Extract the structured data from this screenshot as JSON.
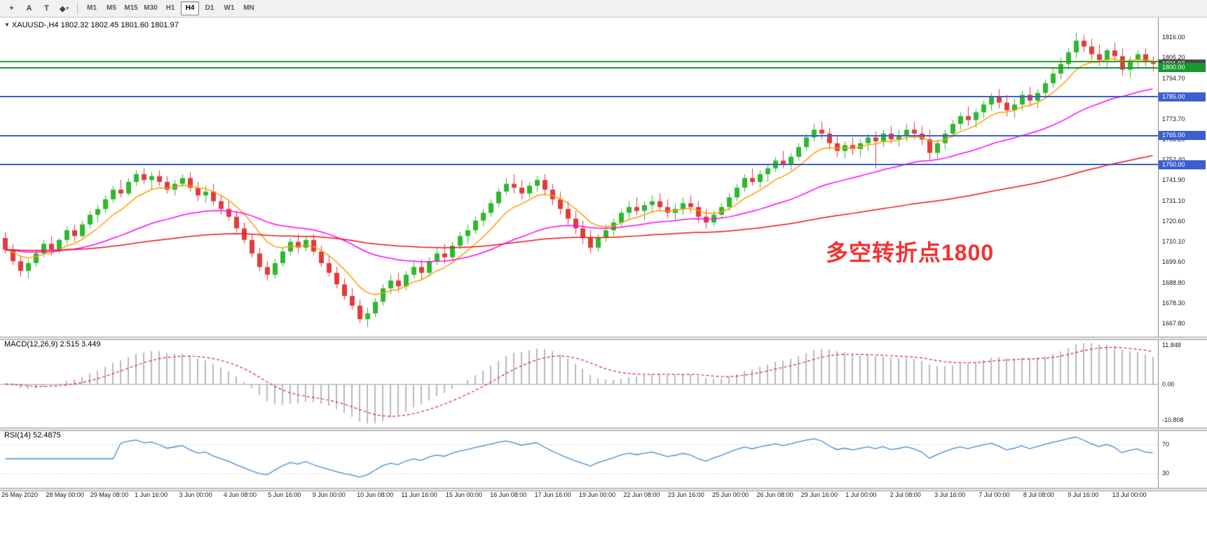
{
  "toolbar": {
    "tools": [
      {
        "name": "crosshair-tool",
        "glyph": "+"
      },
      {
        "name": "label-a-tool",
        "glyph": "A"
      },
      {
        "name": "text-t-tool",
        "glyph": "T"
      },
      {
        "name": "shapes-dropdown-tool",
        "glyph": "◆",
        "caret": "▾"
      }
    ],
    "timeframes": [
      "M1",
      "M5",
      "M15",
      "M30",
      "H1",
      "H4",
      "D1",
      "W1",
      "MN"
    ],
    "active_timeframe": "H4"
  },
  "chart": {
    "expander_icon": "▼",
    "title": "XAUUSD-,H4  1802.32 1802.45 1801.60 1801.97",
    "annotation": "多空转折点1800",
    "price_axis_labels": [
      "1816.00",
      "1805.20",
      "1794.70",
      "1784.20",
      "1773.70",
      "1763.20",
      "1752.40",
      "1741.90",
      "1731.10",
      "1720.60",
      "1710.10",
      "1699.60",
      "1688.80",
      "1678.30",
      "1667.80"
    ],
    "price_boxes": [
      {
        "text": "1801.97",
        "value": 1801.97,
        "bg": "#4b4b4b"
      },
      {
        "text": "1800.00",
        "value": 1800.0,
        "bg": "#169a2f"
      },
      {
        "text": "1785.00",
        "value": 1785.0,
        "bg": "#3a5fd0"
      },
      {
        "text": "1765.00",
        "value": 1765.0,
        "bg": "#3a5fd0"
      },
      {
        "text": "1750.00",
        "value": 1750.0,
        "bg": "#3a5fd0"
      }
    ]
  },
  "chart_data": {
    "type": "candlestick",
    "symbol": "XAUUSD-",
    "timeframe": "H4",
    "open": 1802.32,
    "high": 1802.45,
    "low": 1801.6,
    "close": 1801.97,
    "y_range": [
      1661,
      1826
    ],
    "candle_up_color": "#2eb82e",
    "candle_down_color": "#e23b3b",
    "x_labels": [
      "26 May 2020",
      "28 May 00:00",
      "29 May 08:00",
      "1 Jun 16:00",
      "3 Jun 00:00",
      "4 Jun 08:00",
      "5 Jun 16:00",
      "9 Jun 00:00",
      "10 Jun 08:00",
      "11 Jun 16:00",
      "15 Jun 00:00",
      "16 Jun 08:00",
      "17 Jun 16:00",
      "19 Jun 00:00",
      "22 Jun 08:00",
      "23 Jun 16:00",
      "25 Jun 00:00",
      "26 Jun 08:00",
      "29 Jun 16:00",
      "1 Jul 00:00",
      "2 Jul 08:00",
      "3 Jul 16:00",
      "7 Jul 00:00",
      "8 Jul 08:00",
      "9 Jul 16:00",
      "13 Jul 00:00"
    ],
    "hlines": [
      {
        "value": 1803.2,
        "color": "#2e9e2e",
        "width": 2
      },
      {
        "value": 1800.0,
        "color": "#169a2f",
        "width": 2
      },
      {
        "value": 1785.0,
        "color": "#3a5fd0",
        "width": 2
      },
      {
        "value": 1765.0,
        "color": "#3a5fd0",
        "width": 2
      },
      {
        "value": 1750.0,
        "color": "#3a5fd0",
        "width": 2
      }
    ],
    "moving_averages": [
      {
        "period": 8,
        "color": "#ff9d00"
      },
      {
        "period": 34,
        "color": "#ff00ff"
      },
      {
        "period": 120,
        "color": "#ee1111"
      }
    ],
    "indicators": [
      {
        "type": "MACD",
        "label": "MACD(12,26,9) 2.515 3.449",
        "fast": 12,
        "slow": 26,
        "signal": 9,
        "axis_labels": [
          "11.848",
          "0.00",
          "-10.808"
        ],
        "histogram_color": "#b9b9b9",
        "signal_color": "#e02020"
      },
      {
        "type": "RSI",
        "label": "RSI(14) 52.4875",
        "period": 14,
        "levels": [
          70,
          30
        ],
        "axis_labels": [
          "70",
          "30"
        ],
        "line_color": "#3d8bd4"
      }
    ],
    "ohlc": [
      [
        1712,
        1715,
        1704,
        1706
      ],
      [
        1706,
        1709,
        1698,
        1700
      ],
      [
        1700,
        1703,
        1692,
        1695
      ],
      [
        1695,
        1701,
        1691,
        1699
      ],
      [
        1699,
        1706,
        1697,
        1704
      ],
      [
        1704,
        1711,
        1702,
        1709
      ],
      [
        1709,
        1713,
        1703,
        1706
      ],
      [
        1706,
        1712,
        1704,
        1711
      ],
      [
        1711,
        1718,
        1709,
        1716
      ],
      [
        1716,
        1719,
        1710,
        1713
      ],
      [
        1713,
        1721,
        1712,
        1719
      ],
      [
        1719,
        1726,
        1717,
        1724
      ],
      [
        1724,
        1729,
        1720,
        1727
      ],
      [
        1727,
        1734,
        1725,
        1732
      ],
      [
        1732,
        1739,
        1730,
        1737
      ],
      [
        1737,
        1742,
        1733,
        1735
      ],
      [
        1735,
        1743,
        1734,
        1741
      ],
      [
        1741,
        1747,
        1739,
        1745
      ],
      [
        1745,
        1748,
        1740,
        1742
      ],
      [
        1742,
        1746,
        1737,
        1744
      ],
      [
        1744,
        1747,
        1739,
        1741
      ],
      [
        1741,
        1744,
        1735,
        1737
      ],
      [
        1737,
        1742,
        1734,
        1740
      ],
      [
        1740,
        1745,
        1738,
        1743
      ],
      [
        1743,
        1746,
        1736,
        1738
      ],
      [
        1738,
        1741,
        1731,
        1734
      ],
      [
        1734,
        1739,
        1730,
        1736
      ],
      [
        1736,
        1740,
        1729,
        1731
      ],
      [
        1731,
        1734,
        1724,
        1727
      ],
      [
        1727,
        1731,
        1721,
        1723
      ],
      [
        1723,
        1726,
        1715,
        1717
      ],
      [
        1717,
        1720,
        1709,
        1711
      ],
      [
        1711,
        1714,
        1702,
        1704
      ],
      [
        1704,
        1707,
        1695,
        1697
      ],
      [
        1697,
        1700,
        1690,
        1693
      ],
      [
        1693,
        1701,
        1691,
        1699
      ],
      [
        1699,
        1707,
        1697,
        1705
      ],
      [
        1705,
        1712,
        1703,
        1710
      ],
      [
        1710,
        1714,
        1704,
        1707
      ],
      [
        1707,
        1713,
        1705,
        1711
      ],
      [
        1711,
        1714,
        1703,
        1705
      ],
      [
        1705,
        1708,
        1697,
        1699
      ],
      [
        1699,
        1703,
        1692,
        1694
      ],
      [
        1694,
        1697,
        1686,
        1688
      ],
      [
        1688,
        1691,
        1680,
        1682
      ],
      [
        1682,
        1686,
        1675,
        1677
      ],
      [
        1677,
        1680,
        1668,
        1670
      ],
      [
        1670,
        1676,
        1666,
        1673
      ],
      [
        1673,
        1681,
        1671,
        1679
      ],
      [
        1679,
        1688,
        1677,
        1686
      ],
      [
        1686,
        1693,
        1683,
        1690
      ],
      [
        1690,
        1694,
        1684,
        1687
      ],
      [
        1687,
        1695,
        1685,
        1693
      ],
      [
        1693,
        1700,
        1691,
        1697
      ],
      [
        1697,
        1701,
        1690,
        1694
      ],
      [
        1694,
        1702,
        1692,
        1700
      ],
      [
        1700,
        1707,
        1698,
        1704
      ],
      [
        1704,
        1709,
        1699,
        1702
      ],
      [
        1702,
        1710,
        1700,
        1708
      ],
      [
        1708,
        1715,
        1706,
        1713
      ],
      [
        1713,
        1719,
        1709,
        1716
      ],
      [
        1716,
        1723,
        1714,
        1721
      ],
      [
        1721,
        1727,
        1718,
        1725
      ],
      [
        1725,
        1732,
        1723,
        1730
      ],
      [
        1730,
        1738,
        1728,
        1736
      ],
      [
        1736,
        1743,
        1734,
        1740
      ],
      [
        1740,
        1745,
        1735,
        1738
      ],
      [
        1738,
        1742,
        1732,
        1735
      ],
      [
        1735,
        1741,
        1733,
        1739
      ],
      [
        1739,
        1744,
        1736,
        1742
      ],
      [
        1742,
        1745,
        1734,
        1737
      ],
      [
        1737,
        1740,
        1729,
        1732
      ],
      [
        1732,
        1736,
        1724,
        1727
      ],
      [
        1727,
        1731,
        1719,
        1722
      ],
      [
        1722,
        1726,
        1714,
        1717
      ],
      [
        1717,
        1721,
        1709,
        1712
      ],
      [
        1712,
        1716,
        1704,
        1707
      ],
      [
        1707,
        1714,
        1705,
        1712
      ],
      [
        1712,
        1719,
        1710,
        1716
      ],
      [
        1716,
        1722,
        1713,
        1720
      ],
      [
        1720,
        1727,
        1718,
        1725
      ],
      [
        1725,
        1731,
        1722,
        1728
      ],
      [
        1728,
        1733,
        1724,
        1726
      ],
      [
        1726,
        1731,
        1721,
        1729
      ],
      [
        1729,
        1734,
        1725,
        1731
      ],
      [
        1731,
        1735,
        1726,
        1728
      ],
      [
        1728,
        1732,
        1722,
        1725
      ],
      [
        1725,
        1730,
        1721,
        1727
      ],
      [
        1727,
        1733,
        1724,
        1730
      ],
      [
        1730,
        1734,
        1725,
        1728
      ],
      [
        1728,
        1731,
        1720,
        1723
      ],
      [
        1723,
        1727,
        1717,
        1720
      ],
      [
        1720,
        1726,
        1718,
        1724
      ],
      [
        1724,
        1730,
        1722,
        1728
      ],
      [
        1728,
        1735,
        1726,
        1733
      ],
      [
        1733,
        1740,
        1731,
        1738
      ],
      [
        1738,
        1745,
        1736,
        1743
      ],
      [
        1743,
        1748,
        1739,
        1741
      ],
      [
        1741,
        1747,
        1738,
        1745
      ],
      [
        1745,
        1750,
        1741,
        1748
      ],
      [
        1748,
        1754,
        1746,
        1752
      ],
      [
        1752,
        1757,
        1748,
        1750
      ],
      [
        1750,
        1756,
        1747,
        1754
      ],
      [
        1754,
        1761,
        1752,
        1759
      ],
      [
        1759,
        1766,
        1757,
        1764
      ],
      [
        1764,
        1771,
        1762,
        1768
      ],
      [
        1768,
        1772,
        1763,
        1766
      ],
      [
        1766,
        1769,
        1758,
        1761
      ],
      [
        1761,
        1765,
        1754,
        1757
      ],
      [
        1757,
        1762,
        1753,
        1760
      ],
      [
        1760,
        1764,
        1755,
        1758
      ],
      [
        1758,
        1763,
        1754,
        1761
      ],
      [
        1761,
        1766,
        1757,
        1764
      ],
      [
        1764,
        1767,
        1748,
        1762
      ],
      [
        1762,
        1768,
        1759,
        1766
      ],
      [
        1766,
        1770,
        1761,
        1763
      ],
      [
        1763,
        1768,
        1759,
        1765
      ],
      [
        1765,
        1771,
        1762,
        1768
      ],
      [
        1768,
        1772,
        1763,
        1766
      ],
      [
        1766,
        1770,
        1760,
        1763
      ],
      [
        1763,
        1768,
        1752,
        1756
      ],
      [
        1756,
        1763,
        1753,
        1761
      ],
      [
        1761,
        1768,
        1758,
        1766
      ],
      [
        1766,
        1773,
        1764,
        1771
      ],
      [
        1771,
        1777,
        1768,
        1775
      ],
      [
        1775,
        1780,
        1770,
        1773
      ],
      [
        1773,
        1779,
        1769,
        1777
      ],
      [
        1777,
        1783,
        1774,
        1781
      ],
      [
        1781,
        1787,
        1778,
        1785
      ],
      [
        1785,
        1789,
        1779,
        1782
      ],
      [
        1782,
        1786,
        1775,
        1778
      ],
      [
        1778,
        1784,
        1774,
        1781
      ],
      [
        1781,
        1788,
        1778,
        1786
      ],
      [
        1786,
        1790,
        1780,
        1783
      ],
      [
        1783,
        1789,
        1779,
        1787
      ],
      [
        1787,
        1794,
        1784,
        1792
      ],
      [
        1792,
        1800,
        1790,
        1797
      ],
      [
        1797,
        1805,
        1794,
        1802
      ],
      [
        1802,
        1810,
        1799,
        1808
      ],
      [
        1808,
        1818,
        1805,
        1814
      ],
      [
        1814,
        1817,
        1808,
        1811
      ],
      [
        1811,
        1815,
        1804,
        1807
      ],
      [
        1807,
        1812,
        1801,
        1804
      ],
      [
        1804,
        1810,
        1800,
        1809
      ],
      [
        1809,
        1813,
        1803,
        1806
      ],
      [
        1806,
        1810,
        1796,
        1799
      ],
      [
        1799,
        1806,
        1795,
        1804
      ],
      [
        1804,
        1809,
        1800,
        1807
      ],
      [
        1807,
        1810,
        1801,
        1803
      ],
      [
        1803,
        1806,
        1798,
        1802
      ]
    ]
  }
}
